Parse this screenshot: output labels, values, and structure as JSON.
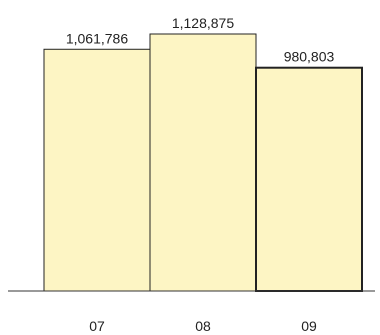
{
  "chart_data": {
    "type": "bar",
    "categories": [
      "07",
      "08",
      "09"
    ],
    "values": [
      1061786,
      1128875,
      980803
    ],
    "value_labels": [
      "1,061,786",
      "1,128,875",
      "980,803"
    ],
    "title": "",
    "xlabel": "",
    "ylabel": "",
    "ylim": [
      0,
      1128875
    ],
    "grid": false,
    "legend": "none",
    "highlighted_category": "09",
    "colors": {
      "bar_fill": "#fdf5c4",
      "bar_stroke": "#222222",
      "axis": "#333333"
    }
  }
}
